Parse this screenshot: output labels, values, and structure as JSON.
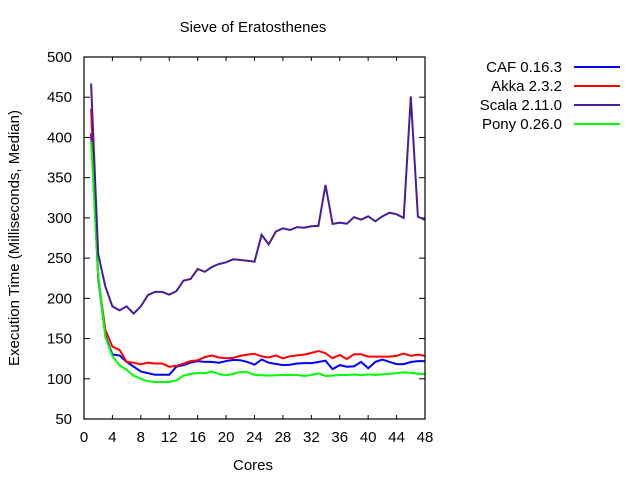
{
  "chart_data": {
    "type": "line",
    "title": "Sieve of Eratosthenes",
    "xlabel": "Cores",
    "ylabel": "Execution Time (Milliseconds, Median)",
    "xlim": [
      0,
      48
    ],
    "ylim": [
      50,
      500
    ],
    "xticks": [
      "0",
      "4",
      "8",
      "12",
      "16",
      "20",
      "24",
      "28",
      "32",
      "36",
      "40",
      "44",
      "48"
    ],
    "xtick_values": [
      0,
      4,
      8,
      12,
      16,
      20,
      24,
      28,
      32,
      36,
      40,
      44,
      48
    ],
    "yticks": [
      "50",
      "100",
      "150",
      "200",
      "250",
      "300",
      "350",
      "400",
      "450",
      "500"
    ],
    "ytick_values": [
      50,
      100,
      150,
      200,
      250,
      300,
      350,
      400,
      450,
      500
    ],
    "grid": false,
    "legend_position": "outside-right-top",
    "x": [
      1,
      2,
      3,
      4,
      5,
      6,
      7,
      8,
      9,
      10,
      11,
      12,
      13,
      14,
      15,
      16,
      17,
      18,
      19,
      20,
      21,
      22,
      23,
      24,
      25,
      26,
      27,
      28,
      29,
      30,
      31,
      32,
      33,
      34,
      35,
      36,
      37,
      38,
      39,
      40,
      41,
      42,
      43,
      44,
      45,
      46,
      47,
      48
    ],
    "series": [
      {
        "name": "CAF 0.16.3",
        "color": "#0000ff",
        "values": [
          405,
          225,
          154,
          130,
          129,
          121,
          115,
          109,
          107,
          105,
          105,
          105,
          115,
          117,
          120,
          122,
          121,
          121,
          120,
          122,
          123.5,
          123,
          121,
          117.5,
          124,
          120,
          118.5,
          117,
          117.5,
          119,
          119.5,
          119.5,
          120.8,
          122.5,
          112,
          117,
          115,
          115.4,
          121,
          113,
          121,
          124,
          121,
          118.3,
          118.3,
          120.8,
          122,
          122
        ]
      },
      {
        "name": "Akka 2.3.2",
        "color": "#ff0000",
        "values": [
          436,
          227,
          161,
          140,
          136,
          121,
          120,
          118,
          120,
          119,
          119,
          115,
          116,
          119,
          122,
          123,
          127,
          129,
          126.5,
          125.4,
          126,
          128.5,
          130,
          131,
          128,
          126.5,
          129,
          125.4,
          128,
          129,
          130,
          132,
          134.5,
          131.8,
          125.6,
          129.7,
          124.4,
          130.5,
          130.5,
          127.6,
          127.6,
          127.6,
          127.6,
          128.5,
          131.4,
          128.5,
          130,
          128.5
        ]
      },
      {
        "name": "Scala 2.11.0",
        "color": "#4b1c94",
        "values": [
          467,
          255,
          215,
          190,
          185,
          190,
          181,
          190,
          204,
          208,
          208,
          204.5,
          209,
          222,
          224,
          236.5,
          233,
          239,
          242.7,
          244.8,
          248.5,
          247.6,
          246.8,
          245.5,
          279,
          267,
          283,
          287,
          285,
          288.6,
          287.8,
          289.5,
          290,
          341,
          292.4,
          294,
          292.8,
          301,
          297.7,
          302,
          295.7,
          302,
          306.5,
          304.4,
          300,
          451,
          301.5,
          297.5
        ]
      },
      {
        "name": "Pony 0.26.0",
        "color": "#00ff00",
        "values": [
          395,
          230,
          152,
          128,
          117,
          111,
          104,
          100,
          97,
          96,
          96,
          96,
          98,
          104,
          106,
          107,
          107,
          109,
          106,
          104.5,
          106,
          108.5,
          108,
          105,
          104.5,
          104,
          104.5,
          104.7,
          105,
          104.7,
          103.5,
          104.7,
          106.8,
          103.5,
          104,
          104.7,
          104.7,
          105.5,
          104.3,
          105.5,
          104.7,
          105.5,
          106.3,
          106.8,
          108,
          107.6,
          106.3,
          106
        ]
      }
    ]
  }
}
